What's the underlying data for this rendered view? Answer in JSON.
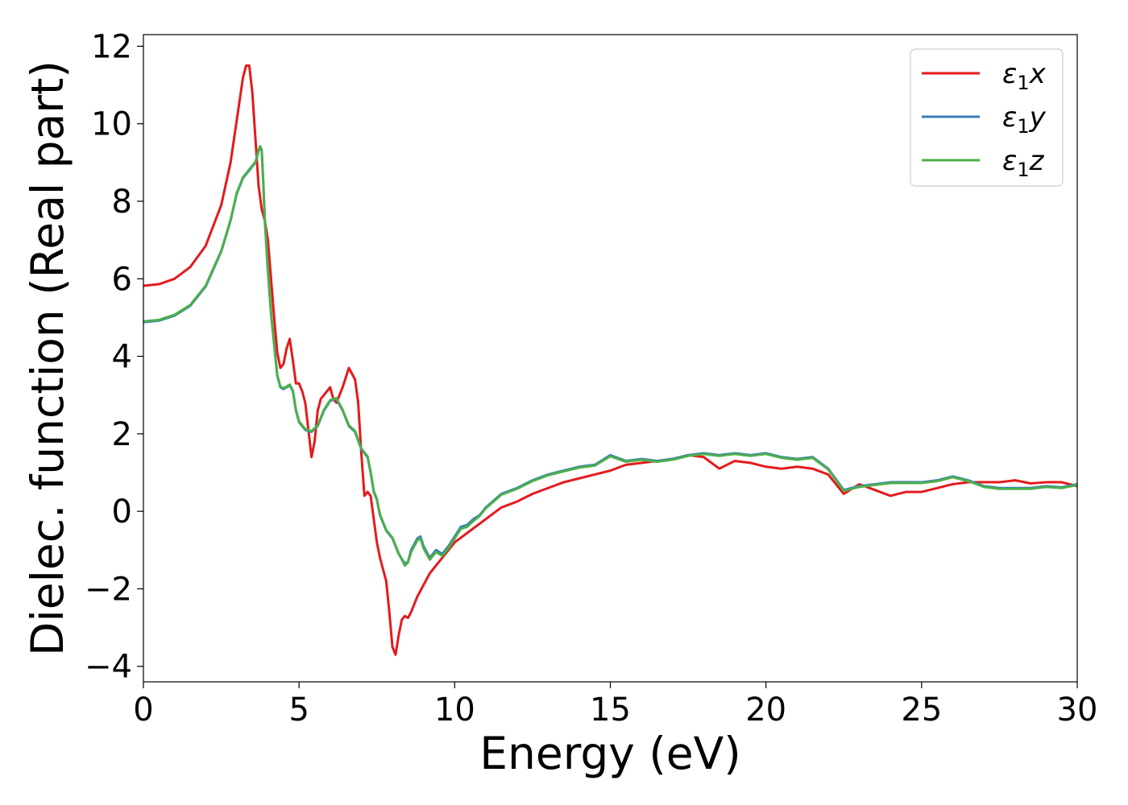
{
  "chart_data": {
    "type": "line",
    "title": "",
    "xlabel": "Energy (eV)",
    "ylabel": "Dielec. function (Real part)",
    "xlim": [
      0,
      30
    ],
    "ylim": [
      -4.4,
      12.3
    ],
    "xticks": [
      0,
      5,
      10,
      15,
      20,
      25,
      30
    ],
    "yticks": [
      -4,
      -2,
      0,
      2,
      4,
      6,
      8,
      10,
      12
    ],
    "grid": false,
    "legend": "top-right",
    "series": [
      {
        "name": "ε1x",
        "symbol": "ε",
        "subscript": "1",
        "axis": "x",
        "color": "#e41a1c",
        "x": [
          0,
          0.5,
          1,
          1.5,
          2,
          2.5,
          2.8,
          3,
          3.2,
          3.3,
          3.4,
          3.5,
          3.6,
          3.7,
          3.8,
          3.9,
          4.0,
          4.1,
          4.2,
          4.3,
          4.4,
          4.5,
          4.6,
          4.7,
          4.8,
          4.9,
          5.0,
          5.1,
          5.2,
          5.4,
          5.5,
          5.6,
          5.7,
          5.8,
          5.9,
          6.0,
          6.1,
          6.2,
          6.4,
          6.6,
          6.8,
          6.9,
          7.0,
          7.1,
          7.2,
          7.3,
          7.4,
          7.5,
          7.6,
          7.7,
          7.8,
          7.9,
          8.0,
          8.1,
          8.2,
          8.3,
          8.4,
          8.5,
          8.6,
          8.7,
          8.8,
          9.0,
          9.2,
          9.4,
          9.6,
          9.8,
          10.0,
          10.5,
          11.0,
          11.5,
          12.0,
          12.5,
          13.0,
          13.5,
          14.0,
          14.5,
          15.0,
          15.5,
          16.0,
          16.5,
          17.0,
          17.5,
          18.0,
          18.5,
          19.0,
          19.5,
          20.0,
          20.5,
          21.0,
          21.5,
          22.0,
          22.5,
          23.0,
          23.5,
          24.0,
          24.5,
          25.0,
          25.5,
          26.0,
          26.5,
          27.0,
          27.5,
          28.0,
          28.5,
          29.0,
          29.5,
          30.0
        ],
        "y": [
          5.82,
          5.86,
          6.0,
          6.3,
          6.85,
          7.9,
          9.0,
          10.1,
          11.2,
          11.5,
          11.5,
          10.8,
          9.6,
          8.4,
          7.8,
          7.5,
          7.0,
          6.0,
          5.0,
          4.1,
          3.7,
          3.8,
          4.2,
          4.45,
          3.9,
          3.3,
          3.3,
          3.1,
          2.8,
          1.4,
          1.8,
          2.6,
          2.9,
          3.0,
          3.1,
          3.2,
          2.9,
          2.8,
          3.2,
          3.7,
          3.4,
          2.8,
          1.5,
          0.4,
          0.5,
          0.4,
          -0.2,
          -0.8,
          -1.2,
          -1.5,
          -1.8,
          -2.6,
          -3.5,
          -3.7,
          -3.2,
          -2.8,
          -2.7,
          -2.75,
          -2.6,
          -2.4,
          -2.2,
          -1.9,
          -1.6,
          -1.4,
          -1.2,
          -1.0,
          -0.8,
          -0.5,
          -0.2,
          0.1,
          0.25,
          0.45,
          0.6,
          0.75,
          0.85,
          0.95,
          1.05,
          1.2,
          1.25,
          1.3,
          1.35,
          1.45,
          1.4,
          1.1,
          1.3,
          1.25,
          1.15,
          1.1,
          1.15,
          1.1,
          0.95,
          0.45,
          0.7,
          0.55,
          0.4,
          0.5,
          0.5,
          0.6,
          0.7,
          0.75,
          0.75,
          0.75,
          0.8,
          0.72,
          0.75,
          0.75,
          0.65
        ]
      },
      {
        "name": "ε1y",
        "symbol": "ε",
        "subscript": "1",
        "axis": "y",
        "color": "#377eb8",
        "x": [
          0,
          0.5,
          1,
          1.5,
          2,
          2.5,
          2.8,
          3,
          3.2,
          3.4,
          3.6,
          3.7,
          3.75,
          3.8,
          3.85,
          3.9,
          4.0,
          4.1,
          4.2,
          4.3,
          4.4,
          4.5,
          4.6,
          4.7,
          4.8,
          4.9,
          5.0,
          5.2,
          5.4,
          5.6,
          5.8,
          6.0,
          6.2,
          6.4,
          6.6,
          6.8,
          7.0,
          7.2,
          7.3,
          7.4,
          7.5,
          7.6,
          7.7,
          7.8,
          8.0,
          8.2,
          8.4,
          8.5,
          8.6,
          8.8,
          8.9,
          9.0,
          9.2,
          9.4,
          9.6,
          9.8,
          10.0,
          10.2,
          10.4,
          10.6,
          10.8,
          11.0,
          11.5,
          12.0,
          12.5,
          13.0,
          13.5,
          14.0,
          14.5,
          15.0,
          15.5,
          16.0,
          16.5,
          17.0,
          17.5,
          18.0,
          18.5,
          19.0,
          19.5,
          20.0,
          20.5,
          21.0,
          21.5,
          22.0,
          22.5,
          23.0,
          23.5,
          24.0,
          24.5,
          25.0,
          25.5,
          26.0,
          26.5,
          27.0,
          27.5,
          28.0,
          28.5,
          29.0,
          29.5,
          30.0
        ],
        "y": [
          4.88,
          4.92,
          5.05,
          5.3,
          5.8,
          6.7,
          7.5,
          8.2,
          8.6,
          8.8,
          9.0,
          9.3,
          9.4,
          9.3,
          8.5,
          7.5,
          6.2,
          5.1,
          4.3,
          3.5,
          3.2,
          3.15,
          3.2,
          3.25,
          3.1,
          2.6,
          2.3,
          2.1,
          2.05,
          2.2,
          2.6,
          2.85,
          2.9,
          2.6,
          2.2,
          2.05,
          1.6,
          1.4,
          1.0,
          0.5,
          0.3,
          -0.1,
          -0.3,
          -0.5,
          -0.7,
          -1.1,
          -1.35,
          -1.3,
          -1.0,
          -0.7,
          -0.65,
          -0.9,
          -1.2,
          -1.0,
          -1.1,
          -0.9,
          -0.65,
          -0.4,
          -0.35,
          -0.2,
          -0.1,
          0.1,
          0.45,
          0.6,
          0.8,
          0.95,
          1.05,
          1.15,
          1.2,
          1.45,
          1.3,
          1.35,
          1.3,
          1.35,
          1.45,
          1.5,
          1.45,
          1.5,
          1.45,
          1.5,
          1.4,
          1.35,
          1.4,
          1.1,
          0.55,
          0.65,
          0.7,
          0.75,
          0.75,
          0.75,
          0.8,
          0.9,
          0.8,
          0.65,
          0.6,
          0.6,
          0.6,
          0.65,
          0.62,
          0.7
        ]
      },
      {
        "name": "ε1z",
        "symbol": "ε",
        "subscript": "1",
        "axis": "z",
        "color": "#4daf4a",
        "x": [
          0,
          0.5,
          1,
          1.5,
          2,
          2.5,
          2.8,
          3,
          3.2,
          3.4,
          3.6,
          3.7,
          3.75,
          3.8,
          3.85,
          3.9,
          4.0,
          4.1,
          4.2,
          4.3,
          4.4,
          4.5,
          4.6,
          4.7,
          4.8,
          4.9,
          5.0,
          5.2,
          5.4,
          5.6,
          5.8,
          6.0,
          6.2,
          6.4,
          6.6,
          6.8,
          7.0,
          7.2,
          7.3,
          7.4,
          7.5,
          7.6,
          7.7,
          7.8,
          8.0,
          8.2,
          8.4,
          8.5,
          8.6,
          8.8,
          8.9,
          9.0,
          9.2,
          9.4,
          9.6,
          9.8,
          10.0,
          10.2,
          10.4,
          10.6,
          10.8,
          11.0,
          11.5,
          12.0,
          12.5,
          13.0,
          13.5,
          14.0,
          14.5,
          15.0,
          15.5,
          16.0,
          16.5,
          17.0,
          17.5,
          18.0,
          18.5,
          19.0,
          19.5,
          20.0,
          20.5,
          21.0,
          21.5,
          22.0,
          22.5,
          23.0,
          23.5,
          24.0,
          24.5,
          25.0,
          25.5,
          26.0,
          26.5,
          27.0,
          27.5,
          28.0,
          28.5,
          29.0,
          29.5,
          30.0
        ],
        "y": [
          4.9,
          4.94,
          5.07,
          5.32,
          5.82,
          6.72,
          7.52,
          8.22,
          8.62,
          8.82,
          9.02,
          9.32,
          9.42,
          9.32,
          8.52,
          7.52,
          6.22,
          5.12,
          4.32,
          3.52,
          3.22,
          3.17,
          3.22,
          3.27,
          3.12,
          2.62,
          2.32,
          2.12,
          2.07,
          2.22,
          2.62,
          2.87,
          2.92,
          2.62,
          2.22,
          2.07,
          1.62,
          1.42,
          1.02,
          0.52,
          0.32,
          -0.08,
          -0.28,
          -0.48,
          -0.68,
          -1.08,
          -1.4,
          -1.32,
          -1.05,
          -0.75,
          -0.7,
          -0.95,
          -1.25,
          -1.05,
          -1.15,
          -0.95,
          -0.7,
          -0.45,
          -0.4,
          -0.25,
          -0.12,
          0.08,
          0.43,
          0.58,
          0.78,
          0.93,
          1.03,
          1.13,
          1.18,
          1.42,
          1.28,
          1.33,
          1.28,
          1.33,
          1.43,
          1.48,
          1.43,
          1.48,
          1.43,
          1.48,
          1.38,
          1.33,
          1.38,
          1.08,
          0.53,
          0.63,
          0.68,
          0.73,
          0.73,
          0.73,
          0.78,
          0.88,
          0.78,
          0.63,
          0.58,
          0.58,
          0.58,
          0.63,
          0.6,
          0.68
        ]
      }
    ]
  }
}
